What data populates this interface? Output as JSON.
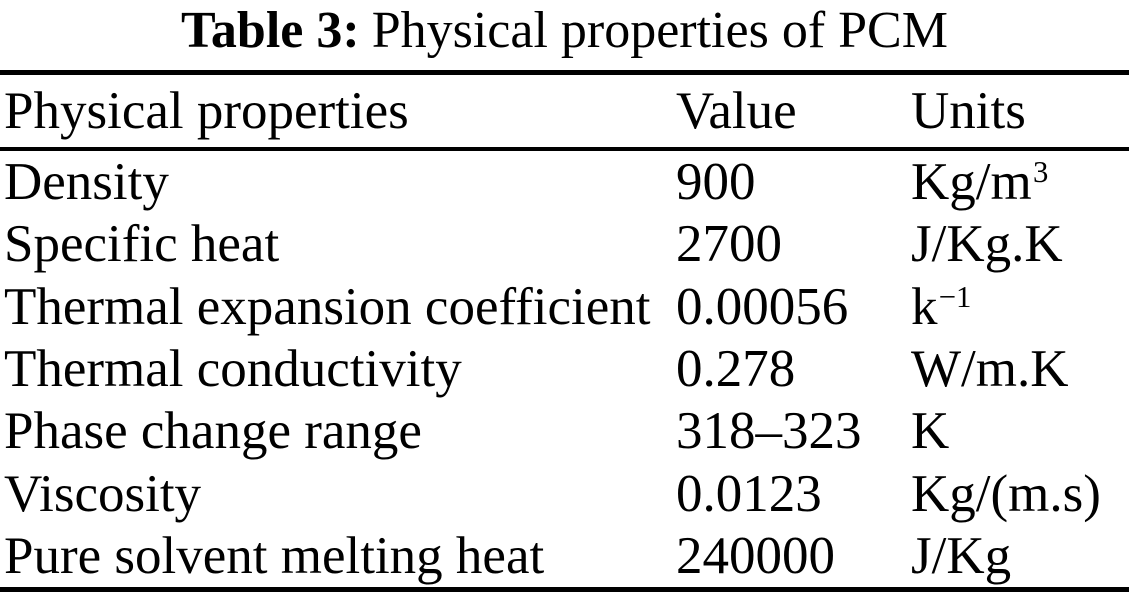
{
  "title": {
    "label": "Table 3:",
    "text": "Physical properties of PCM"
  },
  "table": {
    "headers": {
      "property": "Physical properties",
      "value": "Value",
      "units": "Units"
    },
    "rows": [
      {
        "property": "Density",
        "value": "900",
        "unit": "Kg/m",
        "unit_sup": "3"
      },
      {
        "property": "Specific heat",
        "value": "2700",
        "unit": "J/Kg.K",
        "unit_sup": ""
      },
      {
        "property": "Thermal expansion coefficient",
        "value": "0.00056",
        "unit": "k",
        "unit_sup": "−1"
      },
      {
        "property": "Thermal conductivity",
        "value": "0.278",
        "unit": "W/m.K",
        "unit_sup": ""
      },
      {
        "property": "Phase change range",
        "value": "318–323",
        "unit": "K",
        "unit_sup": ""
      },
      {
        "property": "Viscosity",
        "value": "0.0123",
        "unit": "Kg/(m.s)",
        "unit_sup": ""
      },
      {
        "property": "Pure solvent melting heat",
        "value": "240000",
        "unit": "J/Kg",
        "unit_sup": ""
      }
    ]
  },
  "colors": {
    "background": "#ffffff",
    "text": "#000000",
    "rule": "#000000"
  }
}
